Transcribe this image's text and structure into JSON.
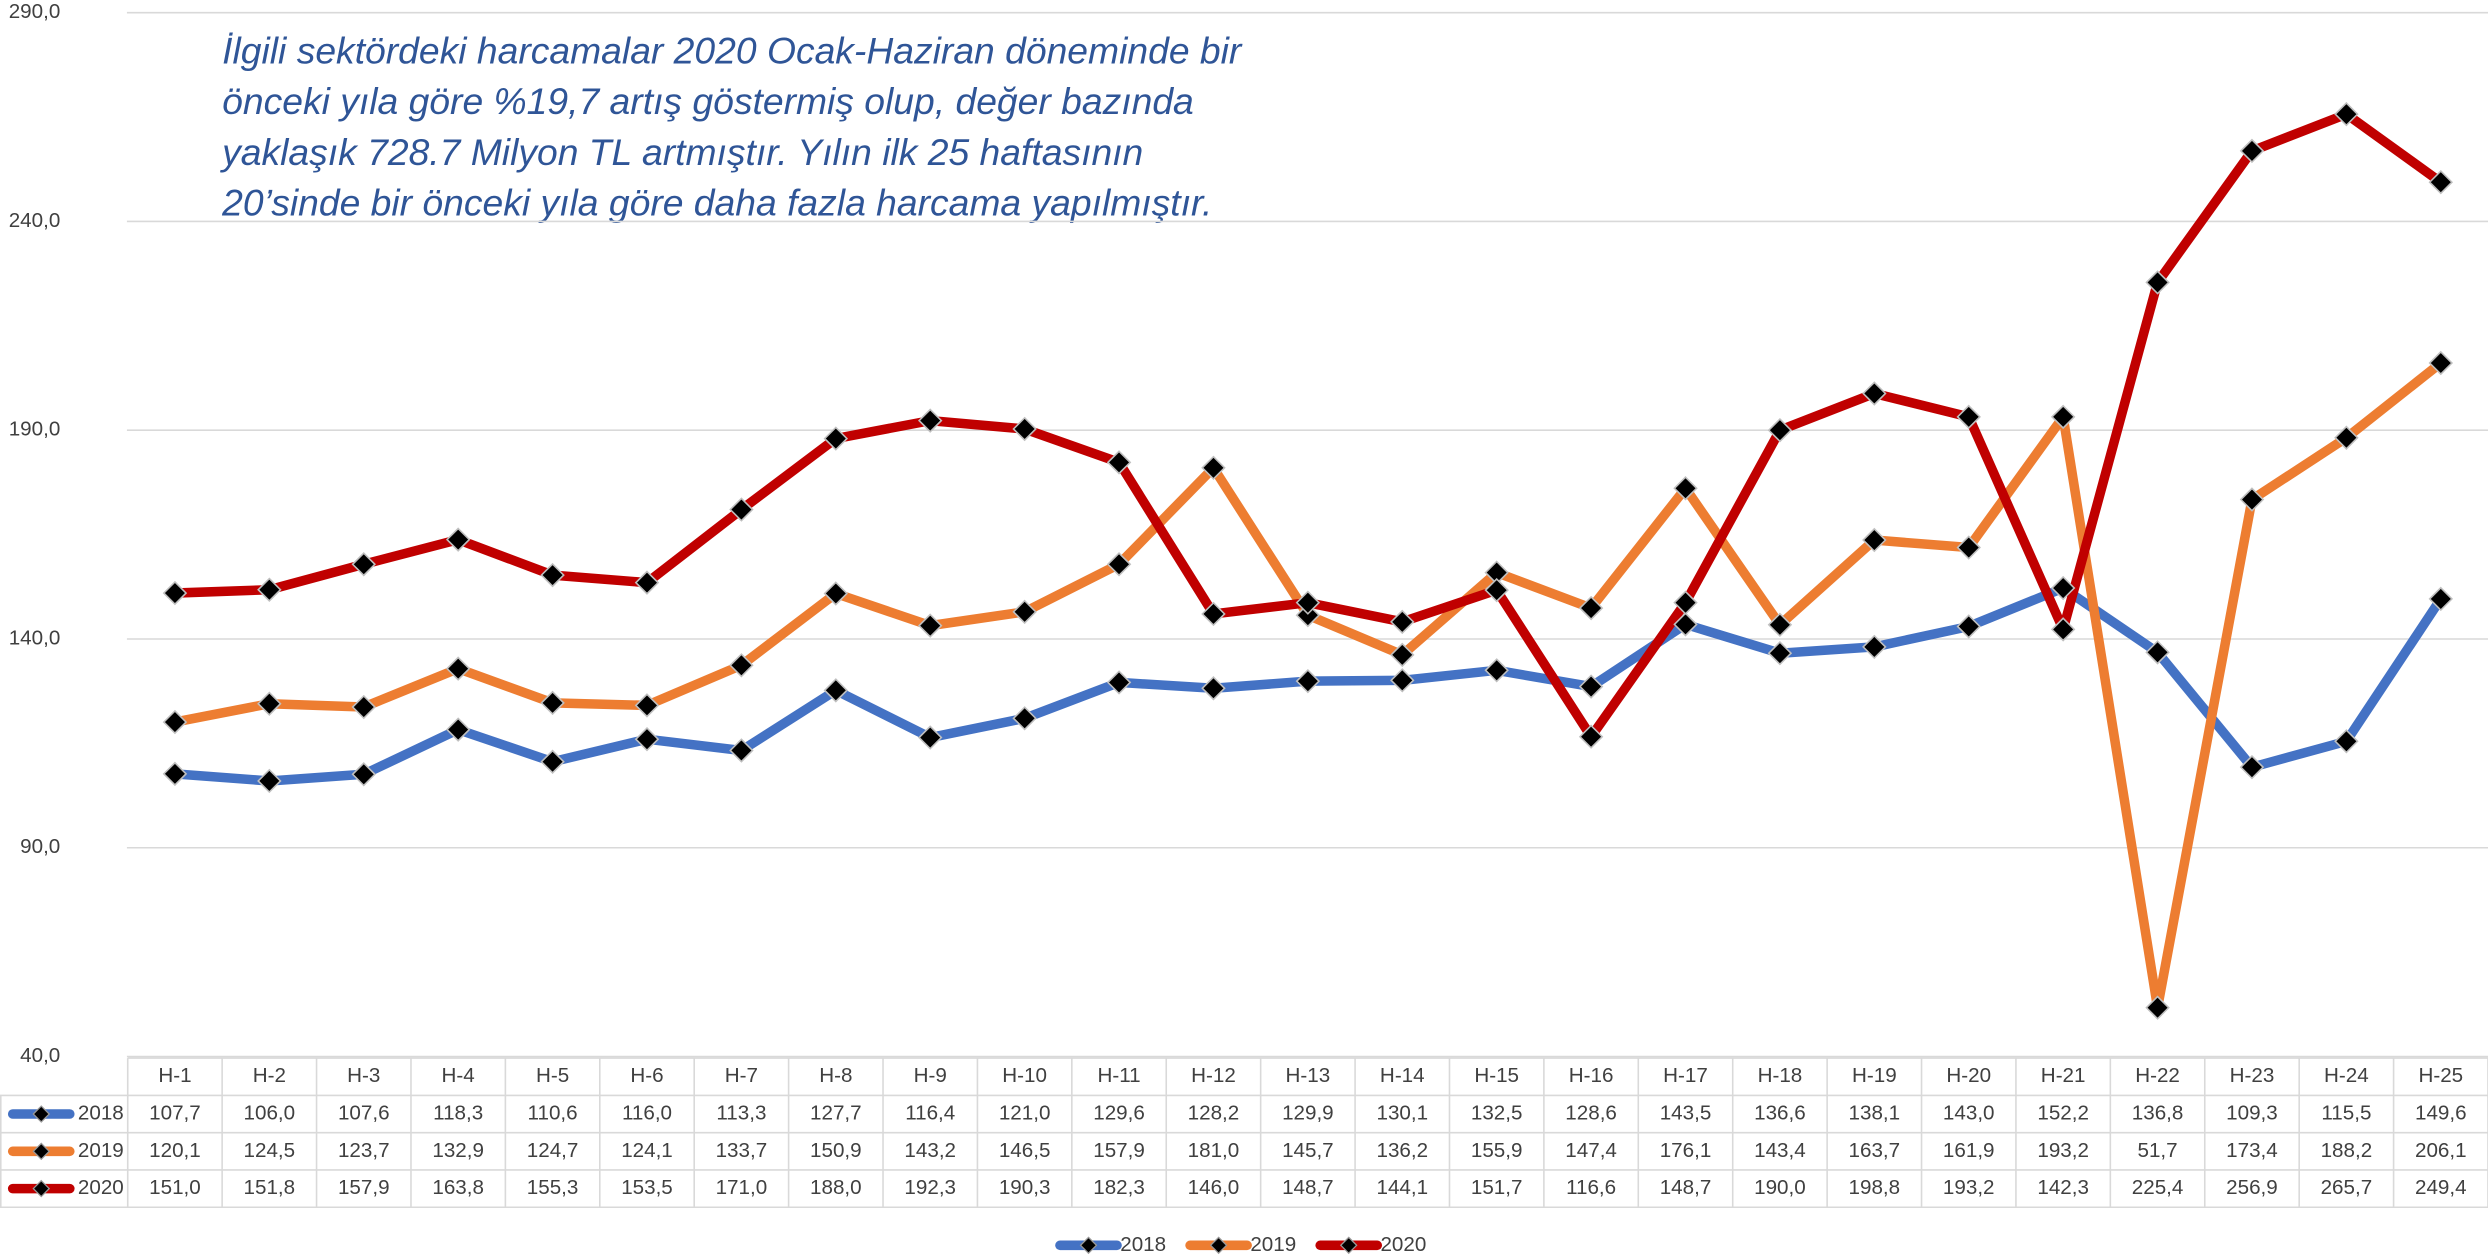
{
  "chart_data": {
    "type": "line",
    "annotation": [
      "İlgili sektördeki harcamalar 2020 Ocak-Haziran döneminde bir",
      "önceki yıla göre %19,7 artış göstermiş olup, değer bazında",
      "yaklaşık 728.7 Milyon TL artmıştır. Yılın ilk 25 haftasının",
      "20’sinde bir önceki yıla göre daha fazla harcama yapılmıştır."
    ],
    "categories": [
      "H-1",
      "H-2",
      "H-3",
      "H-4",
      "H-5",
      "H-6",
      "H-7",
      "H-8",
      "H-9",
      "H-10",
      "H-11",
      "H-12",
      "H-13",
      "H-14",
      "H-15",
      "H-16",
      "H-17",
      "H-18",
      "H-19",
      "H-20",
      "H-21",
      "H-22",
      "H-23",
      "H-24",
      "H-25"
    ],
    "ylim": [
      40,
      290
    ],
    "yticks": [
      {
        "value": 40,
        "label": "40,0"
      },
      {
        "value": 90,
        "label": "90,0"
      },
      {
        "value": 140,
        "label": "140,0"
      },
      {
        "value": 190,
        "label": "190,0"
      },
      {
        "value": 240,
        "label": "240,0"
      },
      {
        "value": 290,
        "label": "290,0"
      }
    ],
    "grid": true,
    "legend": "bottom",
    "series": [
      {
        "name": "2018",
        "color": "#4472c4",
        "values": [
          107.7,
          106.0,
          107.6,
          118.3,
          110.6,
          116.0,
          113.3,
          127.7,
          116.4,
          121.0,
          129.6,
          128.2,
          129.9,
          130.1,
          132.5,
          128.6,
          143.5,
          136.6,
          138.1,
          143.0,
          152.2,
          136.8,
          109.3,
          115.5,
          149.6
        ],
        "value_labels": [
          "107,7",
          "106,0",
          "107,6",
          "118,3",
          "110,6",
          "116,0",
          "113,3",
          "127,7",
          "116,4",
          "121,0",
          "129,6",
          "128,2",
          "129,9",
          "130,1",
          "132,5",
          "128,6",
          "143,5",
          "136,6",
          "138,1",
          "143,0",
          "152,2",
          "136,8",
          "109,3",
          "115,5",
          "149,6"
        ]
      },
      {
        "name": "2019",
        "color": "#ed7d31",
        "values": [
          120.1,
          124.5,
          123.7,
          132.9,
          124.7,
          124.1,
          133.7,
          150.9,
          143.2,
          146.5,
          157.9,
          181.0,
          145.7,
          136.2,
          155.9,
          147.4,
          176.1,
          143.4,
          163.7,
          161.9,
          193.2,
          51.7,
          173.4,
          188.2,
          206.1
        ],
        "value_labels": [
          "120,1",
          "124,5",
          "123,7",
          "132,9",
          "124,7",
          "124,1",
          "133,7",
          "150,9",
          "143,2",
          "146,5",
          "157,9",
          "181,0",
          "145,7",
          "136,2",
          "155,9",
          "147,4",
          "176,1",
          "143,4",
          "163,7",
          "161,9",
          "193,2",
          "51,7",
          "173,4",
          "188,2",
          "206,1"
        ]
      },
      {
        "name": "2020",
        "color": "#c00000",
        "values": [
          151.0,
          151.8,
          157.9,
          163.8,
          155.3,
          153.5,
          171.0,
          188.0,
          192.3,
          190.3,
          182.3,
          146.0,
          148.7,
          144.1,
          151.7,
          116.6,
          148.7,
          190.0,
          198.8,
          193.2,
          142.3,
          225.4,
          256.9,
          265.7,
          249.4
        ],
        "value_labels": [
          "151,0",
          "151,8",
          "157,9",
          "163,8",
          "155,3",
          "153,5",
          "171,0",
          "188,0",
          "192,3",
          "190,3",
          "182,3",
          "146,0",
          "148,7",
          "144,1",
          "151,7",
          "116,6",
          "148,7",
          "190,0",
          "198,8",
          "193,2",
          "142,3",
          "225,4",
          "256,9",
          "265,7",
          "249,4"
        ]
      }
    ]
  }
}
